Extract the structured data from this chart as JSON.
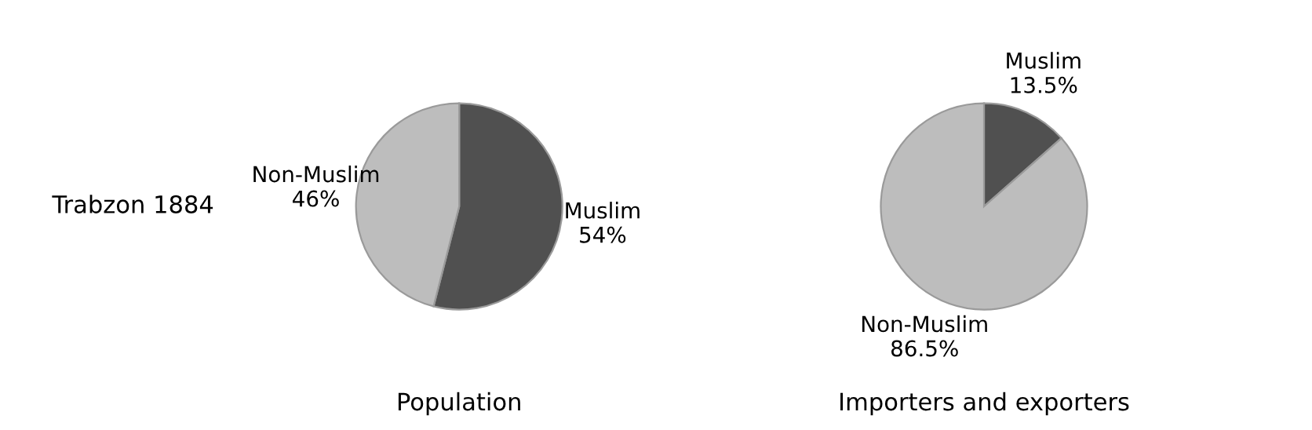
{
  "chart_data": [
    {
      "type": "pie",
      "title": "Population",
      "annotations": [
        "Trabzon 1884"
      ],
      "categories": [
        "Muslim",
        "Non-Muslim"
      ],
      "values": [
        54,
        46
      ],
      "value_labels": [
        "54%",
        "46%"
      ],
      "colors": [
        "#505050",
        "#bdbdbd"
      ]
    },
    {
      "type": "pie",
      "title": "Importers and exporters",
      "categories": [
        "Muslim",
        "Non-Muslim"
      ],
      "values": [
        13.5,
        86.5
      ],
      "value_labels": [
        "13.5%",
        "86.5%"
      ],
      "colors": [
        "#505050",
        "#bdbdbd"
      ]
    }
  ]
}
